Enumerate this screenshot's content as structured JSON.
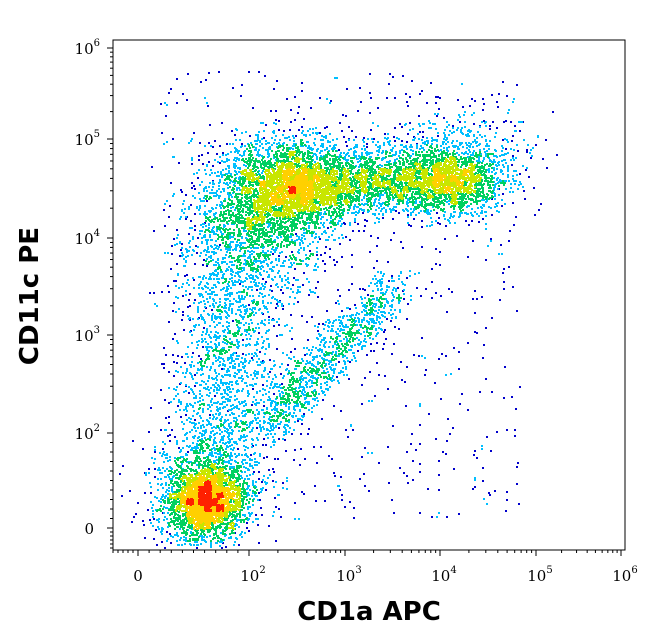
{
  "chart_data": {
    "type": "scatter",
    "subtype": "flow-cytometry density dot plot",
    "xlabel": "CD1a APC",
    "ylabel": "CD11c PE",
    "x_scale": "biexponential (log with linear region near 0)",
    "y_scale": "biexponential (log with linear region near 0)",
    "xlim": [
      0,
      1000000
    ],
    "ylim": [
      0,
      1000000
    ],
    "x_ticks": [
      {
        "base": "0",
        "exp": ""
      },
      {
        "base": "10",
        "exp": "2"
      },
      {
        "base": "10",
        "exp": "3"
      },
      {
        "base": "10",
        "exp": "4"
      },
      {
        "base": "10",
        "exp": "5"
      },
      {
        "base": "10",
        "exp": "6"
      }
    ],
    "y_ticks": [
      {
        "base": "0",
        "exp": ""
      },
      {
        "base": "10",
        "exp": "2"
      },
      {
        "base": "10",
        "exp": "3"
      },
      {
        "base": "10",
        "exp": "4"
      },
      {
        "base": "10",
        "exp": "5"
      },
      {
        "base": "10",
        "exp": "6"
      }
    ],
    "color_scale": "density (blue low → cyan → green → yellow → red high)",
    "colors": [
      "#0000cc",
      "#00bfff",
      "#00d060",
      "#c8e600",
      "#ffd000",
      "#ff2000"
    ],
    "populations": [
      {
        "name_visible": false,
        "desc": "CD1a- CD11c- cluster",
        "x_center": 60,
        "y_center": 30,
        "density": "high"
      },
      {
        "name_visible": false,
        "desc": "CD1a low CD11c high cluster",
        "x_center": 250,
        "y_center": 40000,
        "density": "high"
      },
      {
        "name_visible": false,
        "desc": "CD1a+ CD11c high population",
        "x_center": 8000,
        "y_center": 35000,
        "density": "medium"
      },
      {
        "name_visible": false,
        "desc": "diagonal intermediate population",
        "x_range": [
          100,
          3000
        ],
        "y_range": [
          100,
          5000
        ],
        "density": "low"
      }
    ],
    "grid": false,
    "legend": "none"
  }
}
